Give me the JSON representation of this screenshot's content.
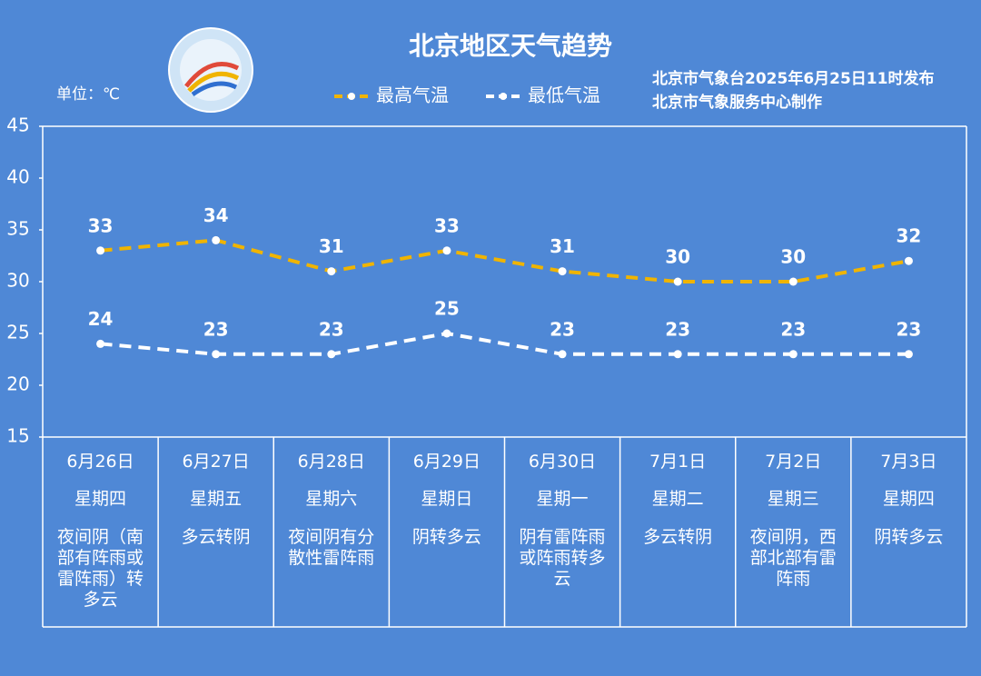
{
  "chart_data": {
    "type": "line",
    "title": "北京地区天气趋势",
    "unit": "单位：℃",
    "issuer": [
      "北京市气象台2025年6月25日11时发布",
      "北京市气象服务中心制作"
    ],
    "categories": [
      "6月26日",
      "6月27日",
      "6月28日",
      "6月29日",
      "6月30日",
      "7月1日",
      "7月2日",
      "7月3日"
    ],
    "weekdays": [
      "星期四",
      "星期五",
      "星期六",
      "星期日",
      "星期一",
      "星期二",
      "星期三",
      "星期四"
    ],
    "weather": [
      "夜间阴（南部有阵雨或雷阵雨）转多云",
      "多云转阴",
      "夜间阴有分散性雷阵雨",
      "阴转多云",
      "阴有雷阵雨或阵雨转多云",
      "多云转阴",
      "夜间阴，西部北部有雷阵雨",
      "阴转多云"
    ],
    "series": [
      {
        "name": "最高气温",
        "color": "#f0b400",
        "values": [
          33,
          34,
          31,
          33,
          31,
          30,
          30,
          32
        ]
      },
      {
        "name": "最低气温",
        "color": "#ffffff",
        "values": [
          24,
          23,
          23,
          25,
          23,
          23,
          23,
          23
        ]
      }
    ],
    "ylim": [
      15,
      45
    ],
    "yticks": [
      15,
      20,
      25,
      30,
      35,
      40,
      45
    ],
    "grid": false
  }
}
